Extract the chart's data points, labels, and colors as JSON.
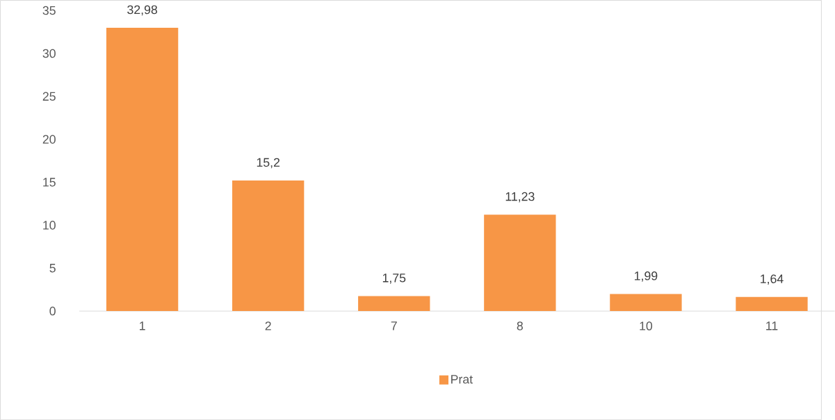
{
  "chart_data": {
    "type": "bar",
    "categories": [
      "1",
      "2",
      "7",
      "8",
      "10",
      "11"
    ],
    "series": [
      {
        "name": "Prat",
        "color": "#f79646",
        "values": [
          32.98,
          15.2,
          1.75,
          11.23,
          1.99,
          1.64
        ],
        "value_labels": [
          "32,98",
          "15,2",
          "1,75",
          "11,23",
          "1,99",
          "1,64"
        ]
      }
    ],
    "ylim": [
      0,
      35
    ],
    "yticks": [
      0,
      5,
      10,
      15,
      20,
      25,
      30,
      35
    ],
    "grid": false,
    "legend": "bottom"
  }
}
